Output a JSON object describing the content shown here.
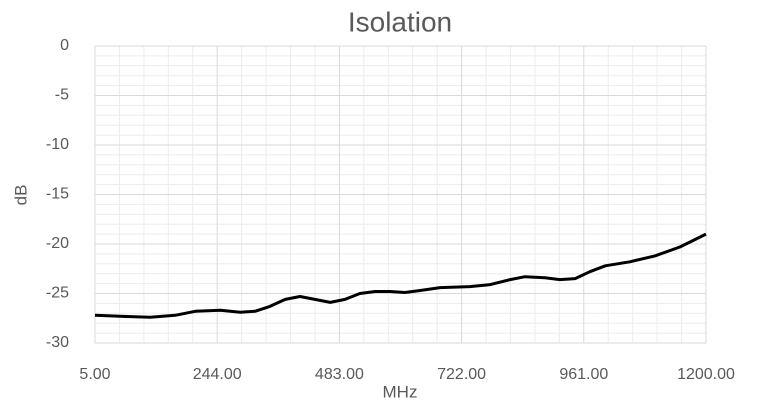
{
  "chart_data": {
    "type": "line",
    "title": "Isolation",
    "x_label": "MHz",
    "y_label": "dB",
    "x": [
      5,
      54,
      113,
      162,
      201,
      250,
      289,
      318,
      347,
      377,
      406,
      435,
      465,
      494,
      523,
      553,
      582,
      611,
      641,
      680,
      738,
      778,
      817,
      846,
      885,
      914,
      944,
      973,
      1003,
      1051,
      1100,
      1149,
      1200
    ],
    "series": [
      {
        "name": "Isolation",
        "color": "#000000",
        "values": [
          -27.2,
          -27.3,
          -27.4,
          -27.2,
          -26.8,
          -26.7,
          -26.9,
          -26.8,
          -26.3,
          -25.6,
          -25.3,
          -25.6,
          -25.9,
          -25.6,
          -25.0,
          -24.8,
          -24.8,
          -24.9,
          -24.7,
          -24.4,
          -24.3,
          -24.1,
          -23.6,
          -23.3,
          -23.4,
          -23.6,
          -23.5,
          -22.8,
          -22.2,
          -21.8,
          -21.2,
          -20.3,
          -19.0
        ]
      }
    ],
    "xlim": [
      5,
      1200
    ],
    "xticks": [
      {
        "value": 5,
        "label": "5.00"
      },
      {
        "value": 244,
        "label": "244.00"
      },
      {
        "value": 483,
        "label": "483.00"
      },
      {
        "value": 722,
        "label": "722.00"
      },
      {
        "value": 961,
        "label": "961.00"
      },
      {
        "value": 1200,
        "label": "1200.00"
      }
    ],
    "ylim": [
      -30,
      0
    ],
    "yticks": [
      0,
      -5,
      -10,
      -15,
      -20,
      -25,
      -30
    ],
    "grid": true,
    "minor_grid": true
  }
}
